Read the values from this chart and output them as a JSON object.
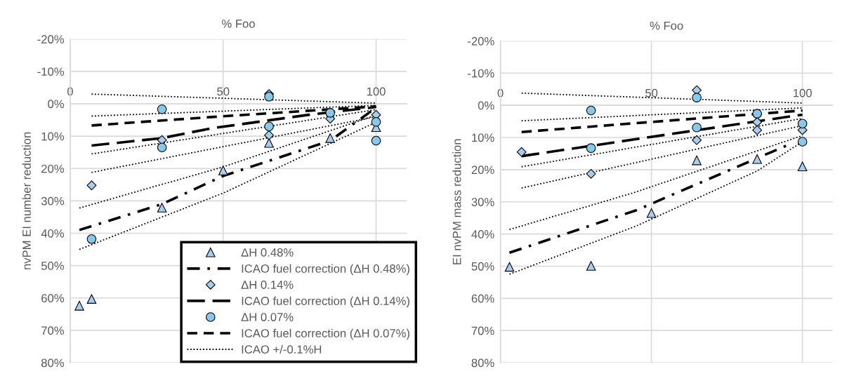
{
  "chart_data": [
    {
      "type": "scatter",
      "xlabel": "% Foo",
      "ylabel": "nvPM EI number reduction",
      "xlim": [
        0,
        110
      ],
      "xticks": [
        0,
        50,
        100
      ],
      "ylim": [
        80,
        -20
      ],
      "yticks": [
        {
          "value": -20,
          "label": "-20%"
        },
        {
          "value": -10,
          "label": "-10%"
        },
        {
          "value": 0,
          "label": "0%"
        },
        {
          "value": 10,
          "label": "10%"
        },
        {
          "value": 20,
          "label": "20%"
        },
        {
          "value": 30,
          "label": "30%"
        },
        {
          "value": 40,
          "label": "40%"
        },
        {
          "value": 50,
          "label": "50%"
        },
        {
          "value": 60,
          "label": "60%"
        },
        {
          "value": 70,
          "label": "70%"
        },
        {
          "value": 80,
          "label": "80%"
        }
      ],
      "grid": true,
      "legend": "bottom right",
      "series": [
        {
          "name": "ΔH 0.48%",
          "marker": "triangle",
          "color": "#a9cdee",
          "x": [
            3,
            7,
            30,
            50,
            65,
            85,
            100
          ],
          "values": [
            62.4,
            60.3,
            32.1,
            20.6,
            12.1,
            10.6,
            7.2
          ]
        },
        {
          "name": "ICAO fuel correction (ΔH 0.48%)",
          "type": "line",
          "line_style": "dashdot",
          "marker": "none",
          "color": "#000000",
          "x": [
            3,
            30,
            50,
            85,
            100
          ],
          "values": [
            39.0,
            31.0,
            22.3,
            11.4,
            1.2
          ]
        },
        {
          "name": "ΔH 0.14%",
          "marker": "diamond",
          "color": "#a9cdee",
          "x": [
            7,
            30,
            65,
            65,
            85,
            100
          ],
          "values": [
            25.2,
            11.2,
            -3.0,
            9.7,
            4.6,
            3.4
          ]
        },
        {
          "name": "ICAO fuel correction (ΔH 0.14%)",
          "type": "line",
          "line_style": "longdash",
          "marker": "none",
          "color": "#000000",
          "x": [
            7,
            30,
            46,
            78,
            100
          ],
          "values": [
            12.9,
            10.6,
            7.6,
            3.4,
            1.0
          ]
        },
        {
          "name": "ΔH 0.07%",
          "marker": "circle",
          "color": "#88c8ea",
          "x": [
            7,
            30,
            30,
            65,
            65,
            85,
            100,
            100
          ],
          "values": [
            41.8,
            1.7,
            13.5,
            -2.2,
            7.0,
            2.8,
            5.6,
            11.4
          ]
        },
        {
          "name": "ICAO fuel correction (ΔH 0.07%)",
          "type": "line",
          "line_style": "dashed",
          "marker": "none",
          "color": "#000000",
          "x": [
            7,
            46,
            100
          ],
          "values": [
            6.7,
            4.1,
            0.8
          ]
        },
        {
          "name": "ICAO +/-0.1%H",
          "type": "line",
          "line_style": "dotted",
          "marker": "none",
          "color": "#000000",
          "x": [
            7,
            100
          ],
          "values": [
            -3.0,
            -0.2
          ]
        },
        {
          "type": "line",
          "line_style": "dotted",
          "marker": "none",
          "color": "#000000",
          "x": [
            7,
            100
          ],
          "values": [
            3.8,
            0.5
          ]
        },
        {
          "type": "line",
          "line_style": "dotted",
          "marker": "none",
          "color": "#000000",
          "x": [
            7,
            100
          ],
          "values": [
            15.5,
            1.8
          ]
        },
        {
          "type": "line",
          "line_style": "dotted",
          "marker": "none",
          "color": "#000000",
          "x": [
            7,
            100
          ],
          "values": [
            21.2,
            4.0
          ]
        },
        {
          "type": "line",
          "line_style": "dotted",
          "marker": "none",
          "color": "#000000",
          "x": [
            3,
            50,
            100
          ],
          "values": [
            32.2,
            19.5,
            3.5
          ]
        },
        {
          "type": "line",
          "line_style": "dotted",
          "marker": "none",
          "color": "#000000",
          "x": [
            3,
            50,
            100
          ],
          "values": [
            45.0,
            27.6,
            5.7
          ]
        }
      ]
    },
    {
      "type": "scatter",
      "xlabel": "% Foo",
      "ylabel": "EI nvPM mass reduction",
      "xlim": [
        0,
        110
      ],
      "xticks": [
        0,
        50,
        100
      ],
      "ylim": [
        80,
        -20
      ],
      "yticks": [
        {
          "value": -20,
          "label": "-20%"
        },
        {
          "value": -10,
          "label": "-10%"
        },
        {
          "value": 0,
          "label": "0%"
        },
        {
          "value": 10,
          "label": "10%"
        },
        {
          "value": 20,
          "label": "20%"
        },
        {
          "value": 30,
          "label": "30%"
        },
        {
          "value": 40,
          "label": "40%"
        },
        {
          "value": 50,
          "label": "50%"
        },
        {
          "value": 60,
          "label": "60%"
        },
        {
          "value": 70,
          "label": "70%"
        },
        {
          "value": 80,
          "label": "80%"
        }
      ],
      "grid": true,
      "series": [
        {
          "marker": "triangle",
          "color": "#a9cdee",
          "x": [
            3,
            30,
            50,
            65,
            85,
            100
          ],
          "values": [
            50.2,
            49.9,
            33.5,
            17.1,
            16.7,
            19.0
          ]
        },
        {
          "type": "line",
          "line_style": "dashdot",
          "marker": "none",
          "color": "#000000",
          "x": [
            3,
            45,
            95
          ],
          "values": [
            45.8,
            32.6,
            12.4
          ]
        },
        {
          "marker": "diamond",
          "color": "#a9cdee",
          "x": [
            7,
            30,
            65,
            65,
            85,
            85,
            100
          ],
          "values": [
            14.5,
            21.3,
            -4.7,
            10.8,
            5.2,
            7.7,
            7.7
          ]
        },
        {
          "type": "line",
          "line_style": "longdash",
          "marker": "none",
          "color": "#000000",
          "x": [
            7,
            45,
            100
          ],
          "values": [
            15.8,
            10.5,
            2.9
          ]
        },
        {
          "marker": "circle",
          "color": "#88c8ea",
          "x": [
            30,
            30,
            65,
            65,
            85,
            100,
            100
          ],
          "values": [
            1.6,
            13.3,
            -2.4,
            6.9,
            2.6,
            5.7,
            11.3
          ]
        },
        {
          "type": "line",
          "line_style": "dashed",
          "marker": "none",
          "color": "#000000",
          "x": [
            7,
            44,
            100
          ],
          "values": [
            8.3,
            5.6,
            1.6
          ]
        },
        {
          "type": "line",
          "line_style": "dotted",
          "marker": "none",
          "color": "#000000",
          "x": [
            7,
            100
          ],
          "values": [
            -3.8,
            -0.7
          ]
        },
        {
          "type": "line",
          "line_style": "dotted",
          "marker": "none",
          "color": "#000000",
          "x": [
            7,
            100
          ],
          "values": [
            4.8,
            0.8
          ]
        },
        {
          "type": "line",
          "line_style": "dotted",
          "marker": "none",
          "color": "#000000",
          "x": [
            7,
            100
          ],
          "values": [
            19.1,
            4.1
          ]
        },
        {
          "type": "line",
          "line_style": "dotted",
          "marker": "none",
          "color": "#000000",
          "x": [
            7,
            100
          ],
          "values": [
            25.7,
            6.3
          ]
        },
        {
          "type": "line",
          "line_style": "dotted",
          "marker": "none",
          "color": "#000000",
          "x": [
            3,
            44,
            100
          ],
          "values": [
            38.6,
            27.2,
            9.4
          ]
        },
        {
          "type": "line",
          "line_style": "dotted",
          "marker": "none",
          "color": "#000000",
          "x": [
            3,
            45,
            85,
            100
          ],
          "values": [
            52.5,
            37.5,
            20.4,
            11.3
          ]
        }
      ]
    }
  ]
}
